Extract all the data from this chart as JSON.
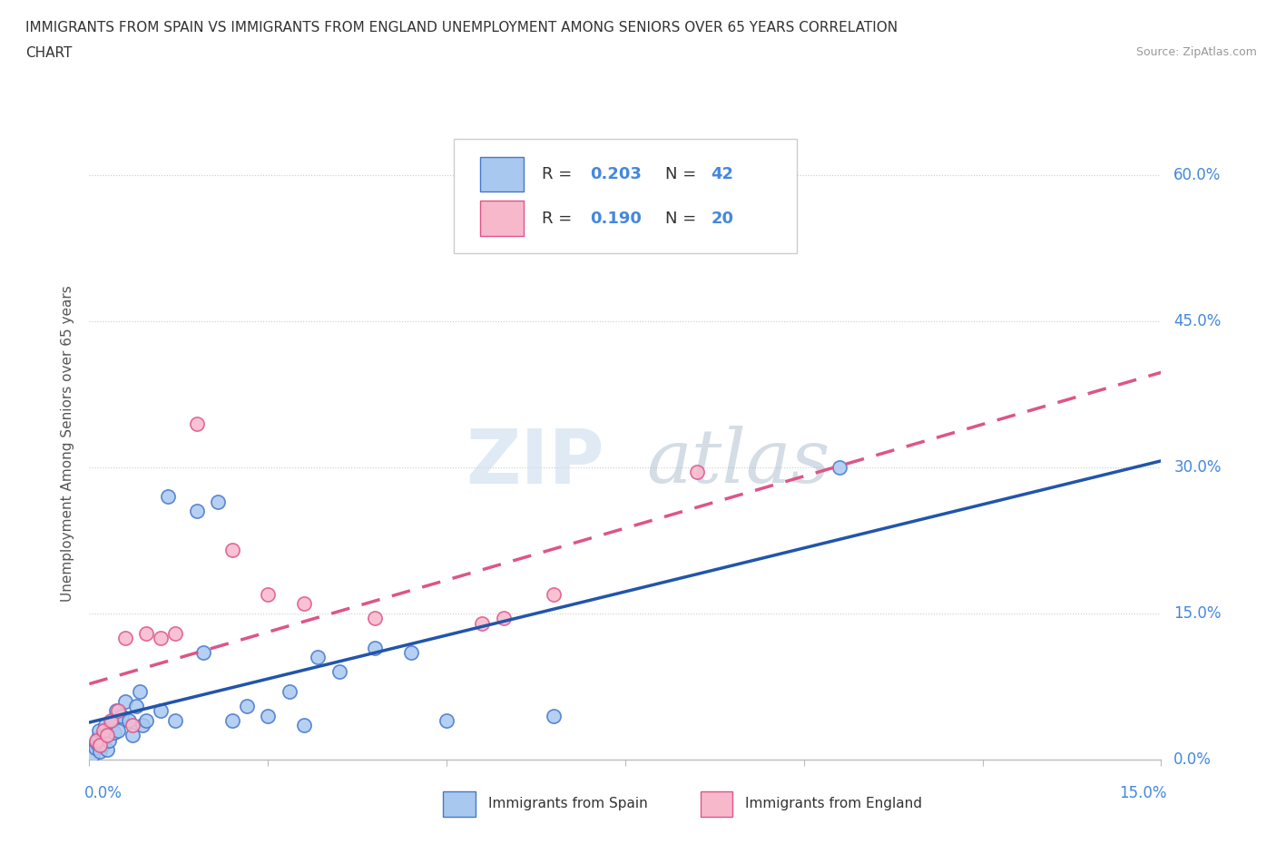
{
  "title_line1": "IMMIGRANTS FROM SPAIN VS IMMIGRANTS FROM ENGLAND UNEMPLOYMENT AMONG SENIORS OVER 65 YEARS CORRELATION",
  "title_line2": "CHART",
  "source": "Source: ZipAtlas.com",
  "ylabel": "Unemployment Among Seniors over 65 years",
  "ytick_labels": [
    "0.0%",
    "15.0%",
    "30.0%",
    "45.0%",
    "60.0%"
  ],
  "ytick_vals": [
    0,
    15,
    30,
    45,
    60
  ],
  "xlim": [
    0,
    15
  ],
  "ylim": [
    0,
    65
  ],
  "legend_r_spain": "0.203",
  "legend_n_spain": "42",
  "legend_r_england": "0.190",
  "legend_n_england": "20",
  "watermark_zip": "ZIP",
  "watermark_atlas": "atlas",
  "spain_fill": "#a8c8f0",
  "spain_edge": "#4477cc",
  "england_fill": "#f8b8cc",
  "england_edge": "#dd5588",
  "spain_line_color": "#2255aa",
  "england_line_color": "#dd5588",
  "label_color": "#4488dd",
  "spain_scatter": [
    [
      0.05,
      0.5
    ],
    [
      0.08,
      1.2
    ],
    [
      0.1,
      1.8
    ],
    [
      0.12,
      2.2
    ],
    [
      0.13,
      3.0
    ],
    [
      0.15,
      0.8
    ],
    [
      0.18,
      1.5
    ],
    [
      0.2,
      2.5
    ],
    [
      0.22,
      3.5
    ],
    [
      0.25,
      1.0
    ],
    [
      0.28,
      2.0
    ],
    [
      0.3,
      3.5
    ],
    [
      0.32,
      4.0
    ],
    [
      0.35,
      2.8
    ],
    [
      0.38,
      5.0
    ],
    [
      0.4,
      3.0
    ],
    [
      0.45,
      4.5
    ],
    [
      0.5,
      6.0
    ],
    [
      0.55,
      4.0
    ],
    [
      0.6,
      2.5
    ],
    [
      0.65,
      5.5
    ],
    [
      0.7,
      7.0
    ],
    [
      0.75,
      3.5
    ],
    [
      0.8,
      4.0
    ],
    [
      1.0,
      5.0
    ],
    [
      1.1,
      27.0
    ],
    [
      1.2,
      4.0
    ],
    [
      1.5,
      25.5
    ],
    [
      1.6,
      11.0
    ],
    [
      1.8,
      26.5
    ],
    [
      2.0,
      4.0
    ],
    [
      2.2,
      5.5
    ],
    [
      2.5,
      4.5
    ],
    [
      2.8,
      7.0
    ],
    [
      3.0,
      3.5
    ],
    [
      3.2,
      10.5
    ],
    [
      3.5,
      9.0
    ],
    [
      4.0,
      11.5
    ],
    [
      4.5,
      11.0
    ],
    [
      5.0,
      4.0
    ],
    [
      6.5,
      4.5
    ],
    [
      10.5,
      30.0
    ]
  ],
  "england_scatter": [
    [
      0.1,
      2.0
    ],
    [
      0.15,
      1.5
    ],
    [
      0.2,
      3.0
    ],
    [
      0.25,
      2.5
    ],
    [
      0.3,
      4.0
    ],
    [
      0.4,
      5.0
    ],
    [
      0.5,
      12.5
    ],
    [
      0.6,
      3.5
    ],
    [
      0.8,
      13.0
    ],
    [
      1.0,
      12.5
    ],
    [
      1.2,
      13.0
    ],
    [
      1.5,
      34.5
    ],
    [
      2.0,
      21.5
    ],
    [
      2.5,
      17.0
    ],
    [
      3.0,
      16.0
    ],
    [
      4.0,
      14.5
    ],
    [
      5.5,
      14.0
    ],
    [
      5.8,
      14.5
    ],
    [
      6.5,
      17.0
    ],
    [
      8.5,
      29.5
    ]
  ]
}
